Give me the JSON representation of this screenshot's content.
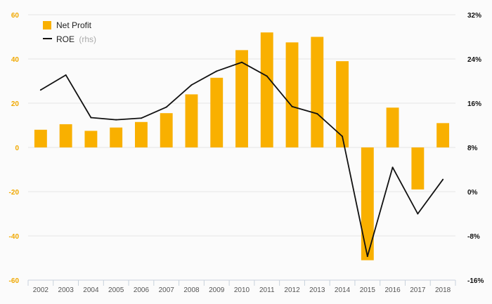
{
  "chart_data": {
    "type": "bar",
    "title": "",
    "categories": [
      "2002",
      "2003",
      "2004",
      "2005",
      "2006",
      "2007",
      "2008",
      "2009",
      "2010",
      "2011",
      "2012",
      "2013",
      "2014",
      "2015",
      "2016",
      "2017",
      "2018"
    ],
    "series": [
      {
        "name": "Net Profit",
        "type": "bar",
        "axis": "left",
        "color": "#f9b000",
        "values": [
          8,
          10.5,
          7.5,
          9,
          11.5,
          15.5,
          24,
          31.5,
          44,
          52,
          47.5,
          50,
          39,
          -51,
          18,
          -19,
          11
        ]
      },
      {
        "name": "ROE",
        "name_suffix": "(rhs)",
        "type": "line",
        "axis": "right",
        "color": "#111111",
        "values": [
          18.4,
          21.1,
          13.4,
          13.0,
          13.3,
          15.3,
          19.3,
          21.8,
          23.4,
          20.9,
          15.4,
          14.1,
          10.0,
          -11.7,
          4.4,
          -4.0,
          2.2
        ]
      }
    ],
    "y_left": {
      "min": -60,
      "max": 60,
      "ticks": [
        "60",
        "40",
        "20",
        "0",
        "-20",
        "-40",
        "-60"
      ]
    },
    "y_right": {
      "min": -16,
      "max": 32,
      "ticks": [
        "32%",
        "24%",
        "16%",
        "8%",
        "0%",
        "-8%",
        "-16%"
      ]
    },
    "legend": {
      "position": "top-left"
    },
    "grid": true
  }
}
